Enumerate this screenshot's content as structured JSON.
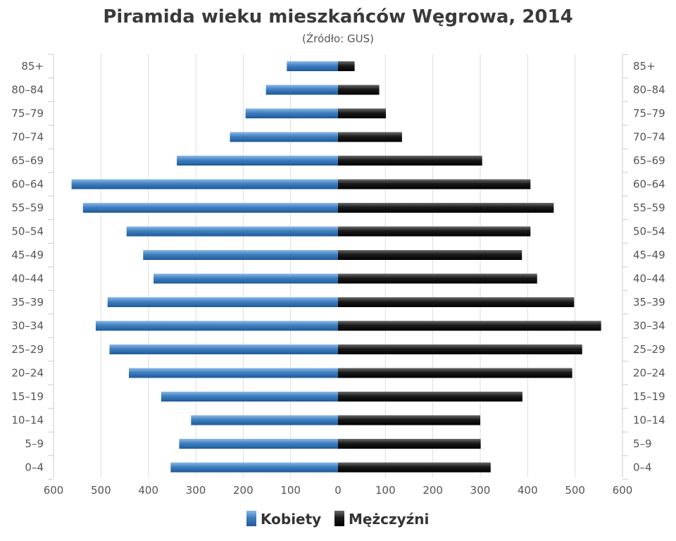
{
  "chart_data": {
    "type": "bar",
    "orientation": "horizontal-pyramid",
    "title": "Piramida wieku mieszkańców Węgrowa, 2014",
    "subtitle": "(Źródło: GUS)",
    "categories": [
      "85+",
      "80–84",
      "75–79",
      "70–74",
      "65–69",
      "60–64",
      "55–59",
      "50–54",
      "45–49",
      "40–44",
      "35–39",
      "30–34",
      "25–29",
      "20–24",
      "15–19",
      "10–14",
      "5–9",
      "0–4"
    ],
    "x_ticks": [
      "600",
      "500",
      "400",
      "300",
      "200",
      "100",
      "0",
      "100",
      "200",
      "300",
      "400",
      "500",
      "600"
    ],
    "xlim": [
      -600,
      600
    ],
    "grid": true,
    "legend_position": "bottom-center",
    "series": [
      {
        "name": "Kobiety",
        "color": "#3f7fc1",
        "side": "left",
        "values": [
          108,
          152,
          195,
          228,
          340,
          562,
          538,
          446,
          411,
          389,
          486,
          511,
          482,
          441,
          373,
          310,
          335,
          353
        ]
      },
      {
        "name": "Mężczyźni",
        "color": "#1a1a1a",
        "side": "right",
        "values": [
          35,
          87,
          101,
          135,
          304,
          406,
          455,
          406,
          388,
          420,
          498,
          555,
          515,
          494,
          389,
          300,
          301,
          322
        ]
      }
    ]
  }
}
